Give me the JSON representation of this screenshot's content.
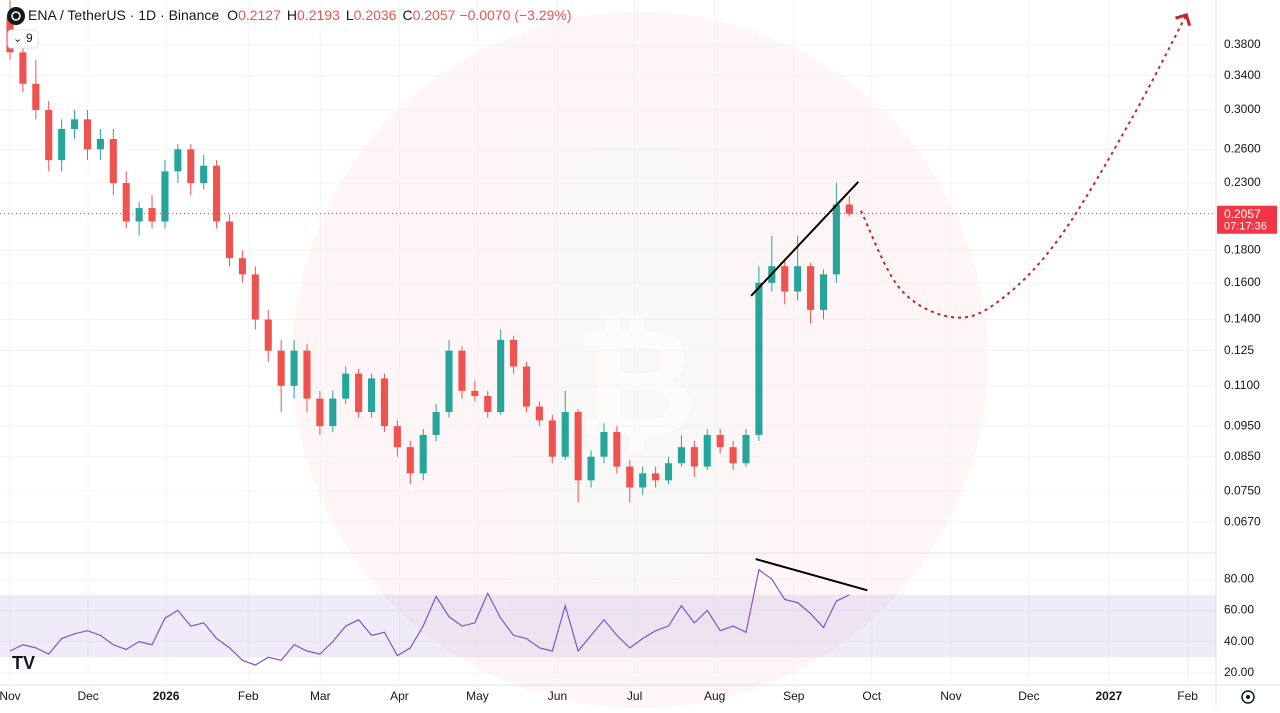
{
  "header": {
    "symbol": "ENA / TetherUS · 1D · Binance",
    "ohlc_labels": [
      "O",
      "H",
      "L",
      "C"
    ],
    "change": "−0.0070 (−3.29%)",
    "indicator_count": "9",
    "countdown": "07:17:36"
  },
  "chart_data": [
    {
      "type": "candlestick",
      "log": true,
      "grid": true,
      "up_color": "#26a69a",
      "down_color": "#ef5350",
      "candles": [
        [
          0.42,
          0.447,
          0.36,
          0.37
        ],
        [
          0.37,
          0.38,
          0.32,
          0.33
        ],
        [
          0.33,
          0.36,
          0.29,
          0.3
        ],
        [
          0.3,
          0.31,
          0.24,
          0.25
        ],
        [
          0.25,
          0.29,
          0.24,
          0.28
        ],
        [
          0.28,
          0.3,
          0.27,
          0.29
        ],
        [
          0.29,
          0.3,
          0.25,
          0.26
        ],
        [
          0.26,
          0.28,
          0.25,
          0.27
        ],
        [
          0.27,
          0.28,
          0.22,
          0.23
        ],
        [
          0.23,
          0.24,
          0.195,
          0.2
        ],
        [
          0.2,
          0.215,
          0.19,
          0.21
        ],
        [
          0.21,
          0.22,
          0.195,
          0.2
        ],
        [
          0.2,
          0.25,
          0.195,
          0.24
        ],
        [
          0.24,
          0.265,
          0.23,
          0.26
        ],
        [
          0.26,
          0.265,
          0.22,
          0.23
        ],
        [
          0.23,
          0.255,
          0.225,
          0.245
        ],
        [
          0.245,
          0.25,
          0.195,
          0.2
        ],
        [
          0.2,
          0.205,
          0.17,
          0.175
        ],
        [
          0.175,
          0.18,
          0.16,
          0.165
        ],
        [
          0.165,
          0.17,
          0.135,
          0.14
        ],
        [
          0.14,
          0.145,
          0.12,
          0.125
        ],
        [
          0.125,
          0.13,
          0.1,
          0.11
        ],
        [
          0.11,
          0.13,
          0.105,
          0.125
        ],
        [
          0.125,
          0.128,
          0.1,
          0.105
        ],
        [
          0.105,
          0.108,
          0.092,
          0.095
        ],
        [
          0.095,
          0.108,
          0.093,
          0.105
        ],
        [
          0.105,
          0.118,
          0.103,
          0.115
        ],
        [
          0.115,
          0.117,
          0.098,
          0.1
        ],
        [
          0.1,
          0.115,
          0.098,
          0.113
        ],
        [
          0.113,
          0.115,
          0.093,
          0.095
        ],
        [
          0.095,
          0.097,
          0.085,
          0.088
        ],
        [
          0.088,
          0.09,
          0.077,
          0.08
        ],
        [
          0.08,
          0.094,
          0.078,
          0.092
        ],
        [
          0.092,
          0.103,
          0.09,
          0.1
        ],
        [
          0.1,
          0.13,
          0.098,
          0.125
        ],
        [
          0.125,
          0.127,
          0.105,
          0.108
        ],
        [
          0.108,
          0.112,
          0.104,
          0.106
        ],
        [
          0.106,
          0.108,
          0.098,
          0.1
        ],
        [
          0.1,
          0.135,
          0.099,
          0.13
        ],
        [
          0.13,
          0.132,
          0.115,
          0.118
        ],
        [
          0.118,
          0.12,
          0.1,
          0.102
        ],
        [
          0.102,
          0.104,
          0.095,
          0.097
        ],
        [
          0.097,
          0.099,
          0.083,
          0.085
        ],
        [
          0.085,
          0.108,
          0.084,
          0.1
        ],
        [
          0.1,
          0.101,
          0.072,
          0.078
        ],
        [
          0.078,
          0.087,
          0.076,
          0.085
        ],
        [
          0.085,
          0.096,
          0.083,
          0.093
        ],
        [
          0.093,
          0.095,
          0.08,
          0.082
        ],
        [
          0.082,
          0.084,
          0.072,
          0.076
        ],
        [
          0.076,
          0.082,
          0.074,
          0.08
        ],
        [
          0.08,
          0.082,
          0.076,
          0.078
        ],
        [
          0.078,
          0.085,
          0.077,
          0.083
        ],
        [
          0.083,
          0.092,
          0.082,
          0.088
        ],
        [
          0.088,
          0.09,
          0.079,
          0.082
        ],
        [
          0.082,
          0.094,
          0.081,
          0.092
        ],
        [
          0.092,
          0.094,
          0.086,
          0.088
        ],
        [
          0.088,
          0.09,
          0.081,
          0.083
        ],
        [
          0.083,
          0.094,
          0.082,
          0.092
        ],
        [
          0.092,
          0.17,
          0.09,
          0.16
        ],
        [
          0.16,
          0.19,
          0.155,
          0.17
        ],
        [
          0.17,
          0.175,
          0.148,
          0.155
        ],
        [
          0.155,
          0.19,
          0.15,
          0.17
        ],
        [
          0.17,
          0.172,
          0.138,
          0.145
        ],
        [
          0.145,
          0.168,
          0.14,
          0.165
        ],
        [
          0.165,
          0.23,
          0.16,
          0.2127
        ],
        [
          0.2127,
          0.2193,
          0.2036,
          0.2057
        ]
      ],
      "xlim": [
        -0.775,
        93.4
      ],
      "ylim": [
        0.0601,
        0.4476
      ],
      "xticks": [
        {
          "value": 0,
          "label": "Nov"
        },
        {
          "value": 6.05,
          "label": "Dec"
        },
        {
          "value": 12.09,
          "label": "2026"
        },
        {
          "value": 18.45,
          "label": "Feb"
        },
        {
          "value": 24.03,
          "label": "Mar"
        },
        {
          "value": 30.16,
          "label": "Apr"
        },
        {
          "value": 36.2,
          "label": "May"
        },
        {
          "value": 42.4,
          "label": "Jun"
        },
        {
          "value": 48.37,
          "label": "Jul"
        },
        {
          "value": 54.57,
          "label": "Aug"
        },
        {
          "value": 60.7,
          "label": "Sep"
        },
        {
          "value": 66.74,
          "label": "Oct"
        },
        {
          "value": 72.87,
          "label": "Nov"
        },
        {
          "value": 78.91,
          "label": "Dec"
        },
        {
          "value": 85.1,
          "label": "2027"
        },
        {
          "value": 91.2,
          "label": "Feb"
        }
      ],
      "yticks": [
        {
          "value": 0.38,
          "label": "0.3800"
        },
        {
          "value": 0.34,
          "label": "0.3400"
        },
        {
          "value": 0.3,
          "label": "0.3000"
        },
        {
          "value": 0.26,
          "label": "0.2600"
        },
        {
          "value": 0.23,
          "label": "0.2300"
        },
        {
          "value": 0.18,
          "label": "0.1800"
        },
        {
          "value": 0.16,
          "label": "0.1600"
        },
        {
          "value": 0.14,
          "label": "0.1400"
        },
        0.125,
        {
          "value": 0.11,
          "label": "0.1100"
        },
        {
          "value": 0.095,
          "label": "0.0950"
        },
        {
          "value": 0.085,
          "label": "0.0850"
        },
        {
          "value": 0.075,
          "label": "0.0750"
        },
        {
          "value": 0.067,
          "label": "0.0670"
        }
      ],
      "trend_line": {
        "x": [
          57.4,
          65.7
        ],
        "y": [
          0.1526,
          0.231
        ],
        "color": "#000000"
      },
      "projection": {
        "x": [
          65.9,
          69,
          73.3,
          77,
          81.4,
          86.8,
          91.1
        ],
        "y": [
          0.208,
          0.156,
          0.141,
          0.152,
          0.19,
          0.289,
          0.424
        ],
        "color": "#c0272d"
      },
      "price_line_color": "#f23645"
    },
    {
      "type": "line",
      "grid": true,
      "color": "#7e57c2",
      "band": [
        30,
        70
      ],
      "band_color": "rgba(126,87,194,0.12)",
      "values": [
        34,
        38,
        36,
        32,
        42,
        45,
        47,
        44,
        38,
        35,
        40,
        38,
        55,
        60,
        50,
        52,
        42,
        36,
        28,
        25,
        30,
        28,
        38,
        34,
        32,
        40,
        50,
        54,
        44,
        46,
        31,
        36,
        50,
        69,
        56,
        50,
        52,
        71,
        55,
        44,
        42,
        36,
        34,
        63,
        34,
        44,
        54,
        44,
        36,
        42,
        47,
        50,
        63,
        52,
        60,
        47,
        50,
        46,
        86,
        80,
        67,
        65,
        58,
        49,
        66,
        70
      ],
      "xlim": [
        -0.775,
        93.4
      ],
      "ylim": [
        13.5,
        95.5
      ],
      "yticks": [
        {
          "value": 80,
          "label": "80.00"
        },
        {
          "value": 60,
          "label": "60.00"
        },
        {
          "value": 40,
          "label": "40.00"
        },
        {
          "value": 20,
          "label": "20.00"
        }
      ],
      "trend_line": {
        "x": [
          57.75,
          66.4
        ],
        "y": [
          92.9,
          72.9
        ],
        "color": "#000000"
      }
    }
  ]
}
